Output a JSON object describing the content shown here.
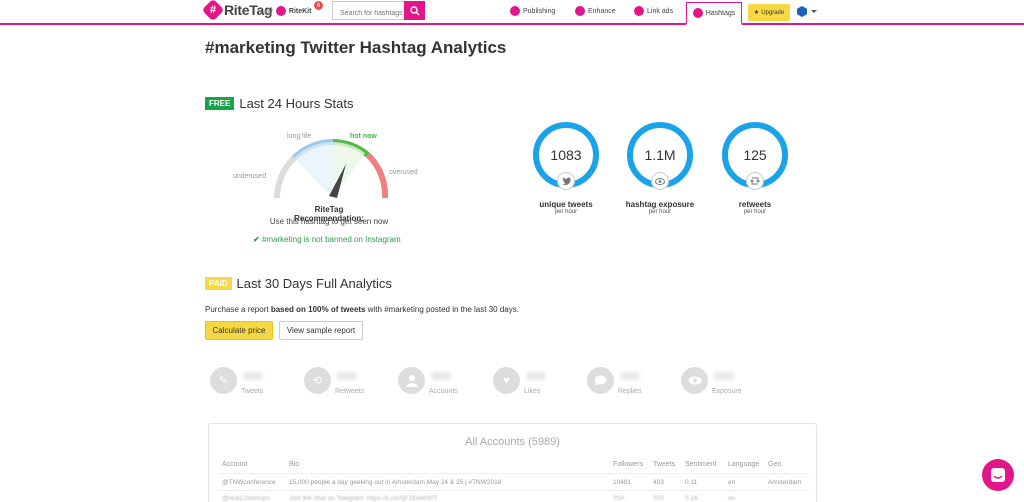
{
  "app": {
    "logo_symbol": "#",
    "logo_text": "RiteTag",
    "by_text": "/ by",
    "ritekit_text": "RiteKit",
    "notif_count": "6"
  },
  "search": {
    "placeholder": "Search for hashtags"
  },
  "nav": {
    "publishing": "Publishing",
    "enhance": "Enhance",
    "link_ads": "Link ads",
    "hashtags": "Hashtags",
    "upgrade": "Upgrade"
  },
  "page_title": "#marketing Twitter Hashtag Analytics",
  "free_section": {
    "tag": "FREE",
    "title": "Last 24 Hours Stats",
    "gauge": {
      "underused": "underused",
      "long_life": "long life",
      "hot_now": "hot now",
      "overused": "overused"
    },
    "recommendation_title": "RiteTag Recommendation:",
    "recommendation_text": "Use this hashtag to get seen now",
    "banned_status": "#marketing is not banned on Instagram",
    "stats": [
      {
        "value": "1083",
        "label": "unique tweets",
        "sub": "per hour",
        "icon": "twitter-icon"
      },
      {
        "value": "1.1M",
        "label": "hashtag exposure",
        "sub": "per hour",
        "icon": "eye-icon"
      },
      {
        "value": "125",
        "label": "retweets",
        "sub": "per hour",
        "icon": "retweet-icon"
      }
    ]
  },
  "paid_section": {
    "tag": "PAID",
    "title": "Last 30 Days Full Analytics",
    "purchase_prefix": "Purchase a report ",
    "purchase_bold": "based on 100% of tweets",
    "purchase_suffix": " with #marketing posted in the last 30 days.",
    "calc_button": "Calculate price",
    "sample_button": "View sample report",
    "metrics": [
      {
        "label": "Tweets",
        "icon": "pencil-icon"
      },
      {
        "label": "Retweets",
        "icon": "retweet-icon"
      },
      {
        "label": "Accounts",
        "icon": "user-icon"
      },
      {
        "label": "Likes",
        "icon": "heart-icon"
      },
      {
        "label": "Replies",
        "icon": "speech-bubble-icon"
      },
      {
        "label": "Exposure",
        "icon": "eye-icon"
      }
    ]
  },
  "accounts_table": {
    "title": "All Accounts (5989)",
    "headers": [
      "Account",
      "Bio",
      "Followers",
      "Tweets",
      "Sentiment",
      "Language",
      "Geo"
    ],
    "rows": [
      [
        "@TNWconference",
        "15,000 people a day geeking out in Amsterdam May 24 & 25 | #TNW2018",
        "10481",
        "403",
        "0.11",
        "en",
        "Amsterdam"
      ],
      [
        "@real12startups",
        "Join the chat on Telegram: https://t.co/AjF1EwM30T",
        "25A",
        "203",
        "0.16",
        "en",
        ""
      ]
    ]
  },
  "colors": {
    "brand": "#e2168a",
    "ring": "#1aa3e8",
    "free": "#16a34a",
    "paid": "#f7d842"
  }
}
